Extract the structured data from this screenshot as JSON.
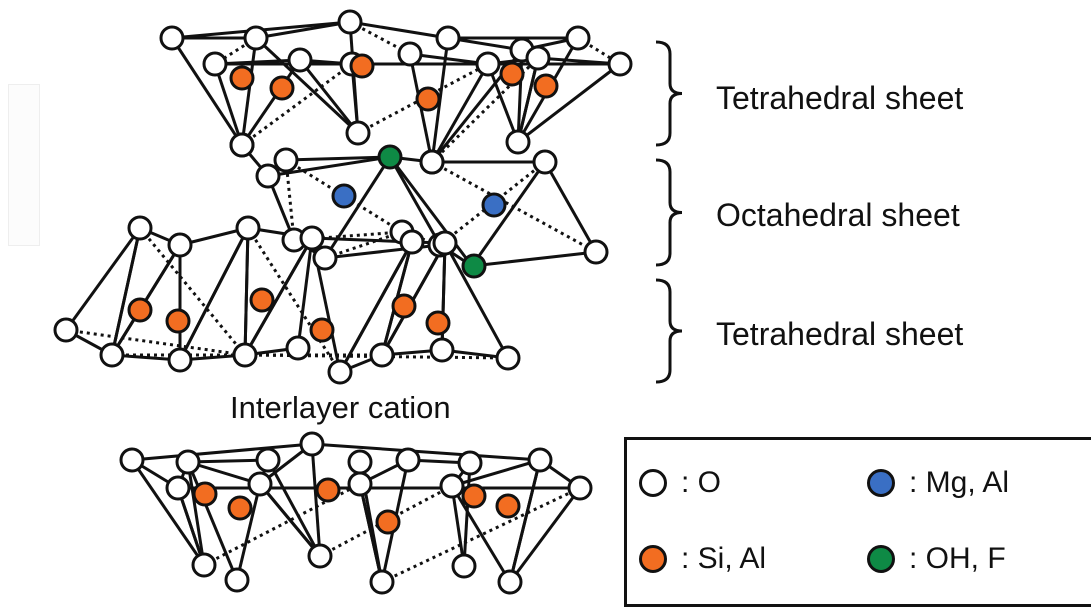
{
  "labels": {
    "tetra_top": "Tetrahedral sheet",
    "octahedral": "Octahedral sheet",
    "tetra_bottom": "Tetrahedral sheet",
    "interlayer": "Interlayer cation"
  },
  "legend": [
    {
      "key": "oxygen",
      "color": "#ffffff",
      "text": ": O"
    },
    {
      "key": "mg-al",
      "color": "#3a6fc4",
      "text": ": Mg, Al"
    },
    {
      "key": "si-al",
      "color": "#f26d21",
      "text": ": Si, Al"
    },
    {
      "key": "oh-f",
      "color": "#0e8a45",
      "text": ": OH, F"
    }
  ],
  "colors": {
    "oxygen": "#ffffff",
    "si_al": "#f26d21",
    "mg_al": "#3a6fc4",
    "oh_f": "#0e8a45",
    "stroke": "#111111"
  }
}
